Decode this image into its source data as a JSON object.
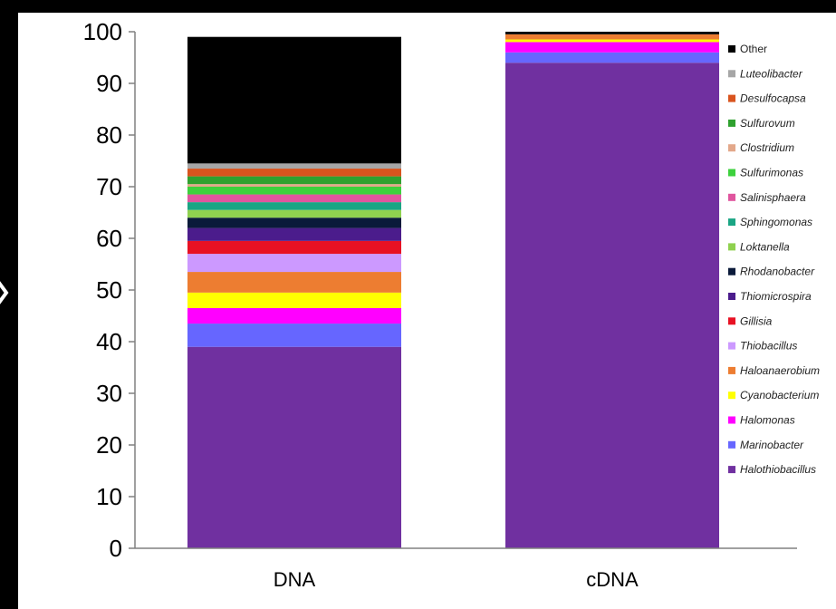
{
  "chart_data": {
    "type": "bar",
    "stacked": true,
    "categories": [
      "DNA",
      "cDNA"
    ],
    "ylim": [
      0,
      100
    ],
    "yticks": [
      0,
      10,
      20,
      30,
      40,
      50,
      60,
      70,
      80,
      90,
      100
    ],
    "title": "",
    "xlabel": "",
    "ylabel": "",
    "grid": false,
    "legend_position": "right",
    "series": [
      {
        "name": "Halothiobacillus",
        "color": "#7030a0",
        "values": [
          39,
          94
        ]
      },
      {
        "name": "Marinobacter",
        "color": "#6666ff",
        "values": [
          4.5,
          2
        ]
      },
      {
        "name": "Halomonas",
        "color": "#ff00ff",
        "values": [
          3,
          2
        ]
      },
      {
        "name": "Cyanobacterium",
        "color": "#ffff00",
        "values": [
          3,
          0.5
        ]
      },
      {
        "name": "Haloanaerobium",
        "color": "#ed7d31",
        "values": [
          4,
          1
        ]
      },
      {
        "name": "Thiobacillus",
        "color": "#cc99ff",
        "values": [
          3.5,
          0
        ]
      },
      {
        "name": "Gillisia",
        "color": "#e81123",
        "values": [
          2.5,
          0
        ]
      },
      {
        "name": "Thiomicrospira",
        "color": "#4b1c8c",
        "values": [
          2.5,
          0
        ]
      },
      {
        "name": "Rhodanobacter",
        "color": "#0a1a3a",
        "values": [
          2,
          0
        ]
      },
      {
        "name": "Loktanella",
        "color": "#8fd14f",
        "values": [
          1.5,
          0
        ]
      },
      {
        "name": "Sphingomonas",
        "color": "#1aa584",
        "values": [
          1.5,
          0
        ]
      },
      {
        "name": "Salinisphaera",
        "color": "#e0559e",
        "values": [
          1.5,
          0
        ]
      },
      {
        "name": "Sulfurimonas",
        "color": "#3dd13d",
        "values": [
          1.5,
          0
        ]
      },
      {
        "name": "Clostridium",
        "color": "#e3a88a",
        "values": [
          0.5,
          0
        ]
      },
      {
        "name": "Sulfurovum",
        "color": "#2fa12f",
        "values": [
          1.5,
          0
        ]
      },
      {
        "name": "Desulfocapsa",
        "color": "#d9541e",
        "values": [
          1.5,
          0
        ]
      },
      {
        "name": "Luteolibacter",
        "color": "#a6a6a6",
        "values": [
          1,
          0
        ]
      },
      {
        "name": "Other",
        "color": "#000000",
        "values": [
          24.5,
          0.5
        ]
      }
    ]
  }
}
